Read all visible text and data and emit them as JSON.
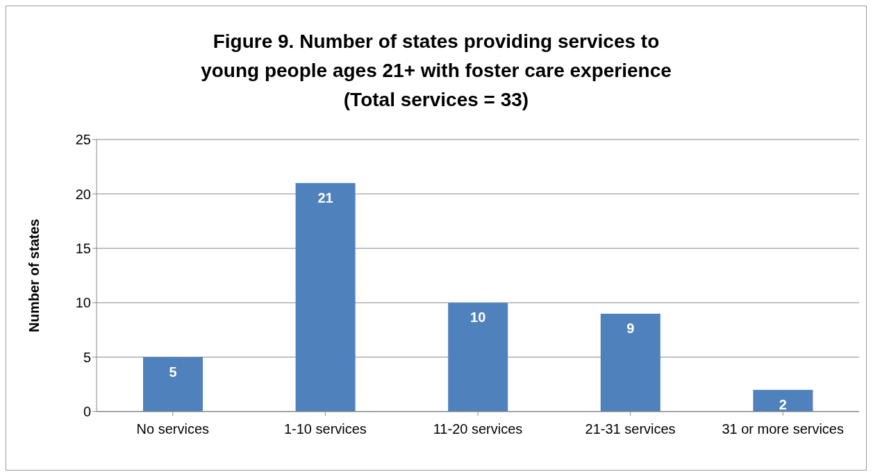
{
  "chart_data": {
    "type": "bar",
    "title": "Figure 9. Number of states providing services to\nyoung people ages 21+ with foster care experience\n(Total services = 33)",
    "ylabel": "Number of states",
    "categories": [
      "No services",
      "1-10 services",
      "11-20 services",
      "21-31 services",
      "31 or more services"
    ],
    "values": [
      5,
      21,
      10,
      9,
      2
    ],
    "color": "#4f81bd",
    "ylim": [
      0,
      25
    ],
    "yticks": [
      0,
      5,
      10,
      15,
      20,
      25
    ],
    "grid": "y",
    "data_labels": true
  }
}
